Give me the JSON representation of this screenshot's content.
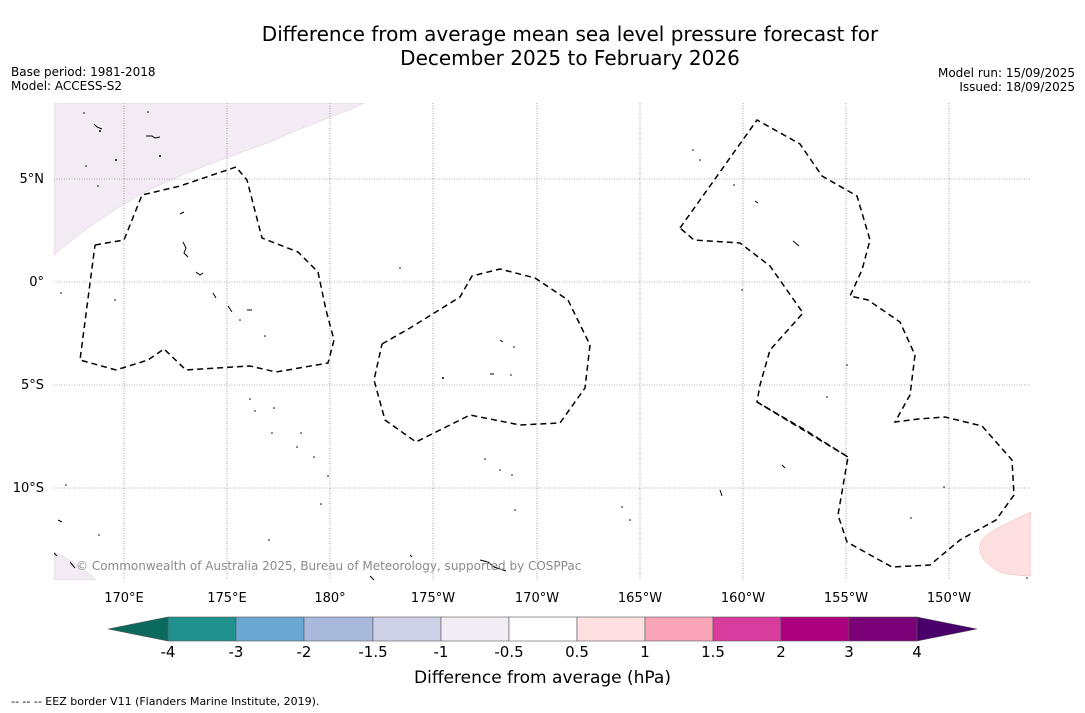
{
  "title": {
    "line1": "Difference from average mean sea level pressure forecast for",
    "line2": "December 2025 to February 2026"
  },
  "meta_left": {
    "base_period": "Base period: 1981-2018",
    "model": "Model: ACCESS-S2"
  },
  "meta_right": {
    "model_run": "Model run: 15/09/2025",
    "issued": "Issued: 18/09/2025"
  },
  "map": {
    "lat_labels": [
      "5°N",
      "0°",
      "5°S",
      "10°S"
    ],
    "lon_labels": [
      "170°E",
      "175°E",
      "180°",
      "175°W",
      "170°W",
      "165°W",
      "160°W",
      "155°W",
      "150°W"
    ],
    "copyright": "© Commonwealth of Australia 2025, Bureau of Meteorology, supported by COSPPac",
    "shading": {
      "north_west": {
        "band": "-1 to -0.5",
        "color": "#f3ebf3"
      },
      "south_west": {
        "band": "-1 to -0.5",
        "color": "#f3ebf3"
      },
      "south_east": {
        "band": "0.5 to 1",
        "color": "#fde0df"
      }
    }
  },
  "colorbar": {
    "ticks": [
      "-4",
      "-3",
      "-2",
      "-1.5",
      "-1",
      "-0.5",
      "0.5",
      "1",
      "1.5",
      "2",
      "3",
      "4"
    ],
    "colors": [
      "#0b6a5e",
      "#21918e",
      "#6aa8d2",
      "#a8b9dc",
      "#cfd1e6",
      "#f2ecf4",
      "#ffffff",
      "#fde0df",
      "#f8a5b8",
      "#d83c9d",
      "#ac017e",
      "#7a0177",
      "#49006a"
    ],
    "label": "Difference from average (hPa)"
  },
  "footnote": "-- -- -- EEZ border V11 (Flanders Marine Institute, 2019)."
}
